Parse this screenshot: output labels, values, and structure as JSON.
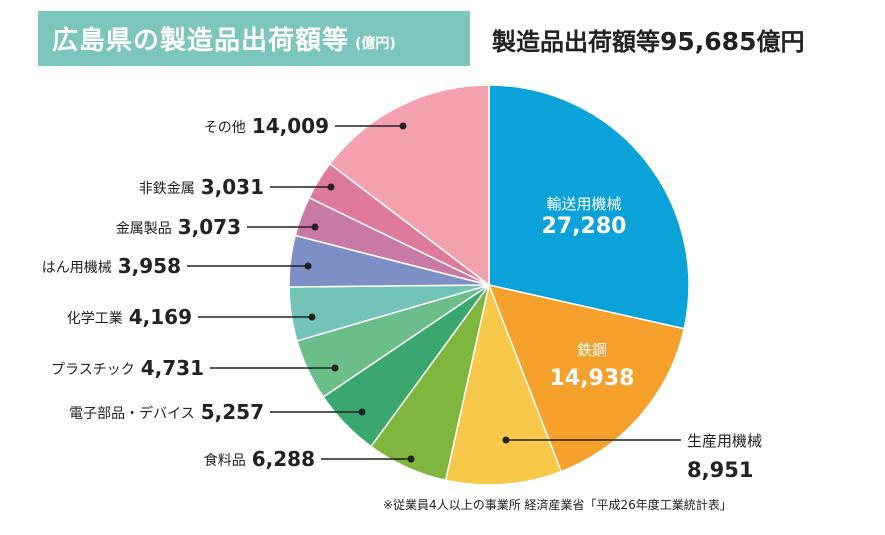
{
  "title": {
    "main": "広島県の製造品出荷額等",
    "unit": "(億円)"
  },
  "total": {
    "label": "製造品出荷額等",
    "value": "95,685",
    "unit": "億円"
  },
  "note": "※従業員4人以上の事業所 経済産業省「平成26年度工業統計表」",
  "chart_data": {
    "type": "pie",
    "title": "広島県の製造品出荷額等",
    "unit": "億円",
    "total": 95685,
    "slices": [
      {
        "name": "輸送用機械",
        "value": 27280,
        "value_label": "27,280",
        "color": "#0aa2d8"
      },
      {
        "name": "鉄鋼",
        "value": 14938,
        "value_label": "14,938",
        "color": "#f5a12b"
      },
      {
        "name": "生産用機械",
        "value": 8951,
        "value_label": "8,951",
        "color": "#f8c84a"
      },
      {
        "name": "食料品",
        "value": 6288,
        "value_label": "6,288",
        "color": "#7fb63e"
      },
      {
        "name": "電子部品・デバイス",
        "value": 5257,
        "value_label": "5,257",
        "color": "#3aa86e"
      },
      {
        "name": "プラスチック",
        "value": 4731,
        "value_label": "4,731",
        "color": "#6bbe8a"
      },
      {
        "name": "化学工業",
        "value": 4169,
        "value_label": "4,169",
        "color": "#72c4b8"
      },
      {
        "name": "はん用機械",
        "value": 3958,
        "value_label": "3,958",
        "color": "#7d8fc4"
      },
      {
        "name": "金属製品",
        "value": 3073,
        "value_label": "3,073",
        "color": "#c97aa4"
      },
      {
        "name": "非鉄金属",
        "value": 3031,
        "value_label": "3,031",
        "color": "#e0799e"
      },
      {
        "name": "その他",
        "value": 14009,
        "value_label": "14,009",
        "color": "#f3a1ad"
      }
    ]
  }
}
